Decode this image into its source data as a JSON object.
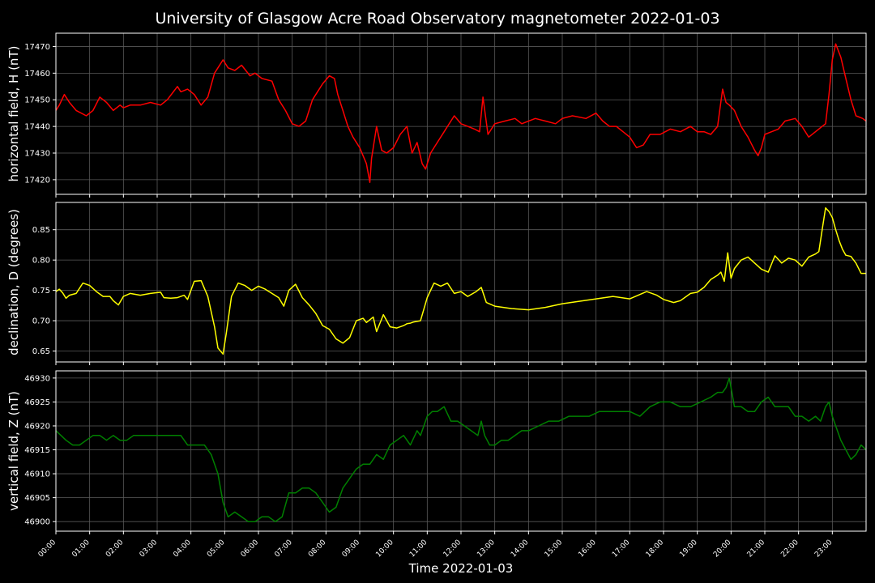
{
  "figure": {
    "title": "University of Glasgow Acre Road Observatory magnetometer 2022-01-03",
    "xlabel": "Time 2022-01-03",
    "background": "#000000",
    "text_color": "#ffffff",
    "grid_color": "#5a5a5a"
  },
  "chart_data": [
    {
      "type": "line",
      "ylabel": "horizontal field, H (nT)",
      "color": "#ff0000",
      "ylim": [
        17414.5,
        17475
      ],
      "yticks": [
        17420,
        17430,
        17440,
        17450,
        17460,
        17470
      ],
      "xlim": [
        0,
        24
      ],
      "xticks": [
        "00:00",
        "01:00",
        "02:00",
        "03:00",
        "04:00",
        "05:00",
        "06:00",
        "07:00",
        "08:00",
        "09:00",
        "10:00",
        "11:00",
        "12:00",
        "13:00",
        "14:00",
        "15:00",
        "16:00",
        "17:00",
        "18:00",
        "19:00",
        "20:00",
        "21:00",
        "22:00",
        "23:00"
      ],
      "grid": true,
      "series": [
        {
          "x": [
            0,
            0.1,
            0.25,
            0.4,
            0.6,
            0.9,
            1.1,
            1.3,
            1.5,
            1.7,
            1.9,
            2.0,
            2.2,
            2.5,
            2.8,
            3.1,
            3.3,
            3.6,
            3.7,
            3.9,
            4.1,
            4.3,
            4.5,
            4.7,
            4.95,
            5.1,
            5.3,
            5.5,
            5.75,
            5.9,
            6.1,
            6.4,
            6.6,
            6.8,
            7.0,
            7.2,
            7.4,
            7.6,
            7.9,
            8.1,
            8.25,
            8.35,
            8.5,
            8.65,
            8.8,
            9.0,
            9.2,
            9.3,
            9.35,
            9.5,
            9.65,
            9.8,
            10.0,
            10.2,
            10.4,
            10.55,
            10.7,
            10.85,
            10.95,
            11.1,
            11.3,
            11.5,
            11.6,
            11.8,
            12.0,
            12.2,
            12.4,
            12.55,
            12.65,
            12.8,
            13.0,
            13.3,
            13.6,
            13.8,
            14.2,
            14.5,
            14.8,
            15.0,
            15.3,
            15.7,
            16.0,
            16.2,
            16.4,
            16.6,
            16.8,
            17.0,
            17.2,
            17.4,
            17.6,
            17.9,
            18.2,
            18.5,
            18.8,
            19.0,
            19.2,
            19.4,
            19.6,
            19.75,
            19.85,
            19.95,
            20.1,
            20.3,
            20.5,
            20.7,
            20.8,
            20.9,
            21.0,
            21.2,
            21.4,
            21.6,
            21.9,
            22.1,
            22.3,
            22.5,
            22.7,
            22.8,
            22.9,
            23.0,
            23.1,
            23.25,
            23.4,
            23.55,
            23.7,
            23.9,
            24.0
          ],
          "y": [
            17446,
            17448,
            17452,
            17449,
            17446,
            17444,
            17446,
            17451,
            17449,
            17446,
            17448,
            17447,
            17448,
            17448,
            17449,
            17448,
            17450,
            17455,
            17453,
            17454,
            17452,
            17448,
            17451,
            17460,
            17465,
            17462,
            17461,
            17463,
            17459,
            17460,
            17458,
            17457,
            17450,
            17446,
            17441,
            17440,
            17442,
            17450,
            17456,
            17459,
            17458,
            17452,
            17446,
            17440,
            17436,
            17432,
            17426,
            17419,
            17428,
            17440,
            17431,
            17430,
            17432,
            17437,
            17440,
            17430,
            17434,
            17426,
            17424,
            17430,
            17434,
            17438,
            17440,
            17444,
            17441,
            17440,
            17439,
            17438,
            17451,
            17437,
            17441,
            17442,
            17443,
            17441,
            17443,
            17442,
            17441,
            17443,
            17444,
            17443,
            17445,
            17442,
            17440,
            17440,
            17438,
            17436,
            17432,
            17433,
            17437,
            17437,
            17439,
            17438,
            17440,
            17438,
            17438,
            17437,
            17440,
            17454,
            17449,
            17448,
            17446,
            17440,
            17436,
            17431,
            17429,
            17432,
            17437,
            17438,
            17439,
            17442,
            17443,
            17440,
            17436,
            17438,
            17440,
            17441,
            17452,
            17465,
            17471,
            17466,
            17458,
            17450,
            17444,
            17443,
            17442
          ]
        }
      ]
    },
    {
      "type": "line",
      "ylabel": "declination, D (degrees)",
      "color": "#ffff00",
      "ylim": [
        0.632,
        0.895
      ],
      "yticks": [
        0.65,
        0.7,
        0.75,
        0.8,
        0.85
      ],
      "xlim": [
        0,
        24
      ],
      "grid": true,
      "series": [
        {
          "x": [
            0,
            0.1,
            0.2,
            0.3,
            0.4,
            0.6,
            0.8,
            1.0,
            1.2,
            1.4,
            1.6,
            1.7,
            1.85,
            2.0,
            2.2,
            2.5,
            2.8,
            3.1,
            3.2,
            3.4,
            3.6,
            3.8,
            3.9,
            4.1,
            4.3,
            4.5,
            4.7,
            4.8,
            4.95,
            5.05,
            5.2,
            5.4,
            5.6,
            5.8,
            6.0,
            6.2,
            6.4,
            6.6,
            6.75,
            6.9,
            7.1,
            7.3,
            7.5,
            7.7,
            7.9,
            8.1,
            8.3,
            8.5,
            8.7,
            8.9,
            9.1,
            9.2,
            9.4,
            9.5,
            9.7,
            9.9,
            10.1,
            10.3,
            10.4,
            10.5,
            10.6,
            10.8,
            11.0,
            11.2,
            11.4,
            11.6,
            11.8,
            12.0,
            12.2,
            12.45,
            12.6,
            12.75,
            13.0,
            13.5,
            14.0,
            14.5,
            15.0,
            15.5,
            16.0,
            16.5,
            17.0,
            17.5,
            17.8,
            18.0,
            18.3,
            18.5,
            18.8,
            19.0,
            19.2,
            19.4,
            19.6,
            19.7,
            19.8,
            19.9,
            20.0,
            20.1,
            20.3,
            20.5,
            20.7,
            20.9,
            21.1,
            21.3,
            21.5,
            21.7,
            21.9,
            22.1,
            22.3,
            22.5,
            22.6,
            22.7,
            22.8,
            22.9,
            23.0,
            23.1,
            23.2,
            23.3,
            23.4,
            23.55,
            23.7,
            23.85,
            24.0
          ],
          "y": [
            0.748,
            0.752,
            0.746,
            0.737,
            0.742,
            0.745,
            0.762,
            0.758,
            0.748,
            0.74,
            0.74,
            0.733,
            0.726,
            0.74,
            0.745,
            0.742,
            0.745,
            0.747,
            0.738,
            0.737,
            0.738,
            0.742,
            0.735,
            0.765,
            0.766,
            0.74,
            0.69,
            0.655,
            0.645,
            0.68,
            0.74,
            0.762,
            0.758,
            0.75,
            0.757,
            0.752,
            0.745,
            0.738,
            0.724,
            0.75,
            0.76,
            0.738,
            0.726,
            0.712,
            0.692,
            0.686,
            0.67,
            0.663,
            0.672,
            0.7,
            0.704,
            0.697,
            0.706,
            0.682,
            0.71,
            0.69,
            0.688,
            0.692,
            0.695,
            0.696,
            0.698,
            0.7,
            0.738,
            0.762,
            0.757,
            0.762,
            0.745,
            0.748,
            0.74,
            0.748,
            0.755,
            0.73,
            0.724,
            0.72,
            0.718,
            0.722,
            0.728,
            0.732,
            0.736,
            0.74,
            0.736,
            0.748,
            0.742,
            0.735,
            0.73,
            0.733,
            0.745,
            0.747,
            0.755,
            0.768,
            0.775,
            0.78,
            0.765,
            0.812,
            0.77,
            0.786,
            0.8,
            0.805,
            0.795,
            0.785,
            0.78,
            0.807,
            0.795,
            0.803,
            0.8,
            0.79,
            0.805,
            0.81,
            0.814,
            0.85,
            0.886,
            0.88,
            0.87,
            0.85,
            0.832,
            0.818,
            0.808,
            0.806,
            0.795,
            0.778,
            0.778
          ]
        }
      ]
    },
    {
      "type": "line",
      "ylabel": "vertical field, Z (nT)",
      "color": "#008000",
      "ylim": [
        46898,
        46931.5
      ],
      "yticks": [
        46900,
        46905,
        46910,
        46915,
        46920,
        46925,
        46930
      ],
      "xlim": [
        0,
        24
      ],
      "grid": true,
      "series": [
        {
          "x": [
            0,
            0.15,
            0.3,
            0.5,
            0.7,
            0.9,
            1.1,
            1.3,
            1.5,
            1.7,
            1.9,
            2.1,
            2.3,
            2.5,
            2.7,
            2.9,
            3.1,
            3.3,
            3.5,
            3.7,
            3.9,
            4.0,
            4.2,
            4.4,
            4.6,
            4.8,
            4.95,
            5.1,
            5.3,
            5.5,
            5.7,
            5.9,
            6.1,
            6.3,
            6.5,
            6.7,
            6.9,
            7.1,
            7.3,
            7.5,
            7.7,
            7.9,
            8.1,
            8.3,
            8.5,
            8.7,
            8.9,
            9.1,
            9.3,
            9.5,
            9.7,
            9.9,
            10.1,
            10.3,
            10.5,
            10.7,
            10.8,
            11.0,
            11.15,
            11.3,
            11.5,
            11.7,
            11.9,
            12.1,
            12.3,
            12.5,
            12.6,
            12.7,
            12.85,
            13.0,
            13.2,
            13.4,
            13.6,
            13.8,
            14.0,
            14.3,
            14.6,
            14.9,
            15.2,
            15.5,
            15.8,
            16.1,
            16.4,
            16.7,
            17.0,
            17.3,
            17.6,
            17.9,
            18.2,
            18.5,
            18.8,
            19.1,
            19.4,
            19.6,
            19.75,
            19.85,
            19.95,
            20.1,
            20.3,
            20.5,
            20.7,
            20.9,
            21.1,
            21.3,
            21.5,
            21.7,
            21.9,
            22.1,
            22.3,
            22.5,
            22.65,
            22.8,
            22.9,
            23.0,
            23.1,
            23.25,
            23.4,
            23.55,
            23.7,
            23.85,
            24.0
          ],
          "y": [
            46919,
            46918,
            46917,
            46916,
            46916,
            46917,
            46918,
            46918,
            46917,
            46918,
            46917,
            46917,
            46918,
            46918,
            46918,
            46918,
            46918,
            46918,
            46918,
            46918,
            46916,
            46916,
            46916,
            46916,
            46914,
            46910,
            46904,
            46901,
            46902,
            46901,
            46900,
            46900,
            46901,
            46901,
            46900,
            46901,
            46906,
            46906,
            46907,
            46907,
            46906,
            46904,
            46902,
            46903,
            46907,
            46909,
            46911,
            46912,
            46912,
            46914,
            46913,
            46916,
            46917,
            46918,
            46916,
            46919,
            46918,
            46922,
            46923,
            46923,
            46924,
            46921,
            46921,
            46920,
            46919,
            46918,
            46921,
            46918,
            46916,
            46916,
            46917,
            46917,
            46918,
            46919,
            46919,
            46920,
            46921,
            46921,
            46922,
            46922,
            46922,
            46923,
            46923,
            46923,
            46923,
            46922,
            46924,
            46925,
            46925,
            46924,
            46924,
            46925,
            46926,
            46927,
            46927,
            46928,
            46930,
            46924,
            46924,
            46923,
            46923,
            46925,
            46926,
            46924,
            46924,
            46924,
            46922,
            46922,
            46921,
            46922,
            46921,
            46924,
            46925,
            46922,
            46920,
            46917,
            46915,
            46913,
            46914,
            46916,
            46915
          ]
        }
      ]
    }
  ]
}
